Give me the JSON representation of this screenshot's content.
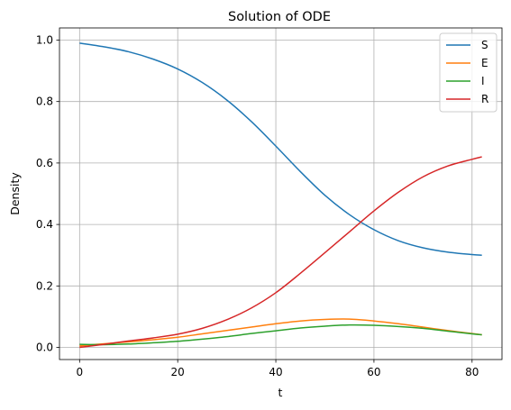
{
  "chart_data": {
    "type": "line",
    "title": "Solution of ODE",
    "xlabel": "t",
    "ylabel": "Density",
    "xlim": [
      -4.1,
      86.1
    ],
    "ylim": [
      -0.0395,
      1.0395
    ],
    "xticks": [
      0,
      20,
      40,
      60,
      80
    ],
    "xtick_labels": [
      "0",
      "20",
      "40",
      "60",
      "80"
    ],
    "yticks": [
      0.0,
      0.2,
      0.4,
      0.6,
      0.8,
      1.0
    ],
    "ytick_labels": [
      "0.0",
      "0.2",
      "0.4",
      "0.6",
      "0.8",
      "1.0"
    ],
    "grid": true,
    "legend_position": "top-right",
    "x": [
      0,
      5,
      10,
      15,
      20,
      25,
      30,
      35,
      40,
      45,
      50,
      55,
      60,
      65,
      70,
      75,
      80,
      82
    ],
    "series": [
      {
        "name": "S",
        "color": "#1f77b4",
        "values": [
          0.99,
          0.978,
          0.962,
          0.938,
          0.906,
          0.862,
          0.805,
          0.735,
          0.655,
          0.572,
          0.495,
          0.432,
          0.383,
          0.347,
          0.324,
          0.31,
          0.302,
          0.3
        ]
      },
      {
        "name": "E",
        "color": "#ff7f0e",
        "values": [
          0.005,
          0.012,
          0.018,
          0.025,
          0.033,
          0.044,
          0.055,
          0.066,
          0.077,
          0.086,
          0.091,
          0.092,
          0.086,
          0.077,
          0.066,
          0.055,
          0.045,
          0.041
        ]
      },
      {
        "name": "I",
        "color": "#2ca02c",
        "values": [
          0.01,
          0.009,
          0.011,
          0.015,
          0.02,
          0.027,
          0.035,
          0.045,
          0.054,
          0.063,
          0.069,
          0.073,
          0.072,
          0.068,
          0.062,
          0.053,
          0.044,
          0.041
        ]
      },
      {
        "name": "R",
        "color": "#d62728",
        "values": [
          0.0,
          0.01,
          0.021,
          0.031,
          0.043,
          0.062,
          0.09,
          0.128,
          0.178,
          0.241,
          0.308,
          0.376,
          0.444,
          0.505,
          0.555,
          0.59,
          0.612,
          0.62
        ]
      }
    ]
  }
}
